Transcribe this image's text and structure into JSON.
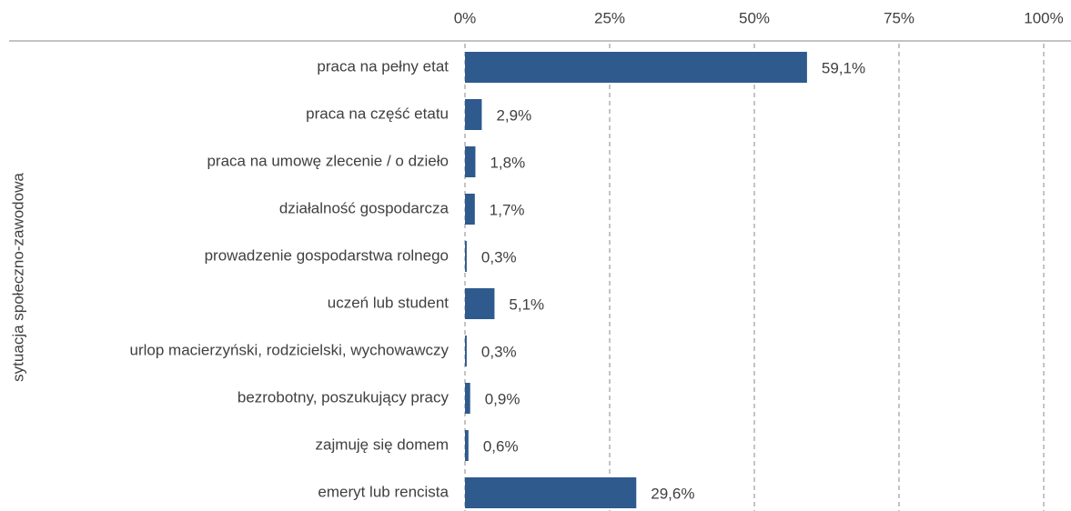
{
  "chart_data": {
    "type": "bar",
    "orientation": "horizontal",
    "y_axis_label": "sytuacja społeczno-zawodowa",
    "categories": [
      "praca na pełny etat",
      "praca na część etatu",
      "praca na umowę zlecenie / o dzieło",
      "działalność gospodarcza",
      "prowadzenie gospodarstwa rolnego",
      "uczeń lub student",
      "urlop macierzyński, rodzicielski, wychowawczy",
      "bezrobotny, poszukujący pracy",
      "zajmuję się domem",
      "emeryt lub rencista"
    ],
    "values": [
      59.1,
      2.9,
      1.8,
      1.7,
      0.3,
      5.1,
      0.3,
      0.9,
      0.6,
      29.6
    ],
    "value_labels": [
      "59,1%",
      "2,9%",
      "1,8%",
      "1,7%",
      "0,3%",
      "5,1%",
      "0,3%",
      "0,9%",
      "0,6%",
      "29,6%"
    ],
    "color": "#2e5a8e",
    "xlim": [
      0,
      100
    ],
    "xticks": [
      {
        "value": 0,
        "label": "0%"
      },
      {
        "value": 25,
        "label": "25%"
      },
      {
        "value": 50,
        "label": "50%"
      },
      {
        "value": 75,
        "label": "75%"
      },
      {
        "value": 100,
        "label": "100%"
      }
    ],
    "grid": true
  }
}
